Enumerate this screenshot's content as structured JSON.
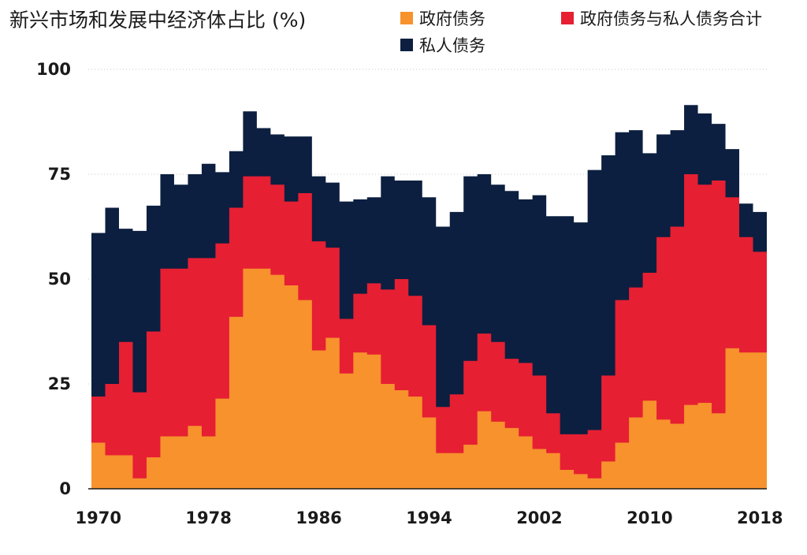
{
  "chart_data": {
    "type": "area",
    "title": "新兴市场和发展中经济体占比 (%)",
    "stepped": true,
    "x_start": 1970,
    "x_end": 2018,
    "xticks": [
      1970,
      1978,
      1986,
      1994,
      2002,
      2010,
      2018
    ],
    "yticks": [
      0,
      25,
      50,
      75,
      100
    ],
    "ylim": [
      0,
      100
    ],
    "grid": "horizontal-dotted",
    "legend": "top-right",
    "series": [
      {
        "name": "政府债务",
        "color": "#f7922d",
        "values": [
          11,
          8,
          8,
          2.5,
          7.5,
          12.5,
          12.5,
          15,
          12.5,
          21.5,
          41,
          52.5,
          52.5,
          51,
          48.5,
          45,
          33,
          36,
          27.5,
          32.5,
          32,
          25,
          23.5,
          22,
          17,
          8.5,
          8.5,
          10.5,
          18.5,
          16,
          14.5,
          12.5,
          9.5,
          8.5,
          4.5,
          3.5,
          2.5,
          6.5,
          11,
          17,
          21,
          16.5,
          15.5,
          20,
          20.5,
          18,
          33.5,
          32.5,
          32.5
        ]
      },
      {
        "name": "政府债务与私人债务合计",
        "color": "#e61f33",
        "values": [
          22,
          25,
          35,
          23,
          37.5,
          52.5,
          52.5,
          55,
          55,
          58.5,
          67,
          74.5,
          74.5,
          72.5,
          68.5,
          70.5,
          59,
          57.5,
          40.5,
          46.5,
          49,
          47.5,
          50,
          46,
          39,
          19.5,
          22.5,
          30.5,
          37,
          35,
          31,
          30,
          27,
          18,
          13,
          13,
          14,
          27,
          45,
          48,
          51.5,
          60,
          62.5,
          75,
          72.5,
          73.5,
          69.5,
          60,
          56.5
        ]
      },
      {
        "name": "私人债务",
        "color": "#0c1f40",
        "values": [
          61,
          67,
          62,
          61.5,
          67.5,
          75,
          72.5,
          75,
          77.5,
          75.5,
          80.5,
          90,
          86,
          84.5,
          84,
          84,
          74.5,
          73,
          68.5,
          69,
          69.5,
          74.5,
          73.5,
          73.5,
          69.5,
          62.5,
          66,
          74.5,
          75,
          72.5,
          71,
          69,
          70,
          65,
          65,
          63.5,
          76,
          79.5,
          85,
          85.5,
          80,
          84.5,
          85.5,
          91.5,
          89.5,
          87,
          81,
          68,
          66
        ]
      }
    ]
  }
}
